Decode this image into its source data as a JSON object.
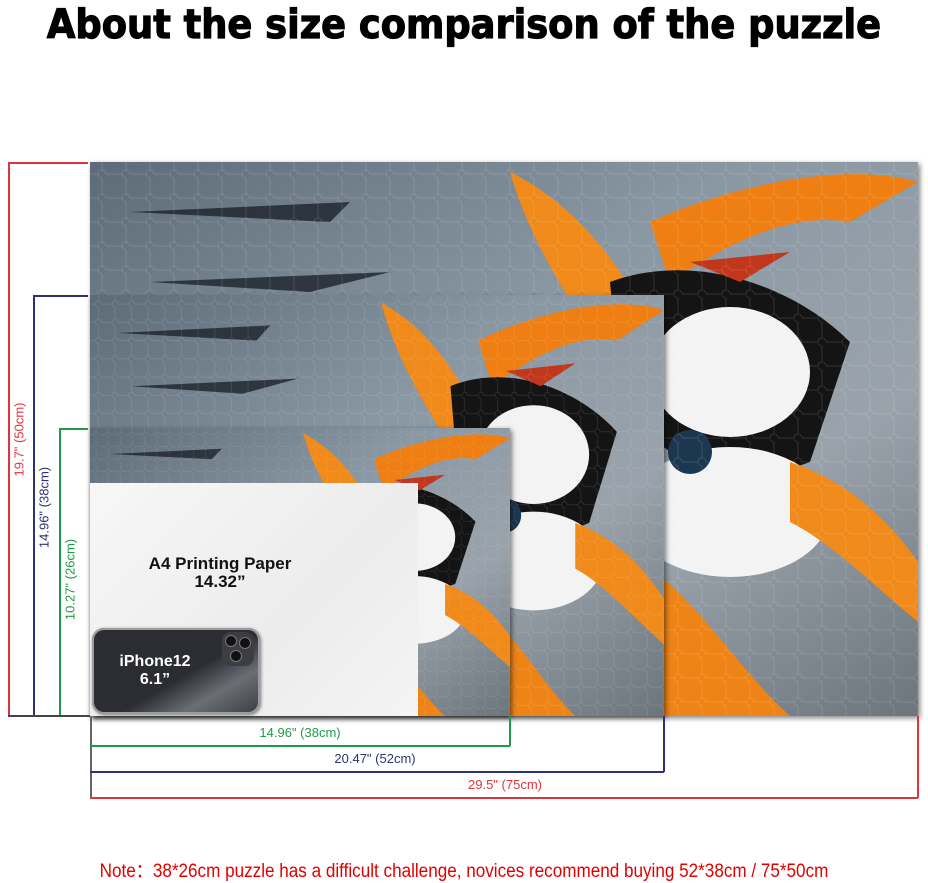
{
  "title": "About the size comparison of the puzzle",
  "colors": {
    "large": "#e0343c",
    "medium": "#2e3272",
    "small": "#1f9a4a",
    "note": "#e10000"
  },
  "puzzles": [
    {
      "size": "large",
      "height_label": "19.7\" (50cm)",
      "width_label": "29.5\" (75cm)"
    },
    {
      "size": "medium",
      "height_label": "14.96\" (38cm)",
      "width_label": "20.47\" (52cm)"
    },
    {
      "size": "small",
      "height_label": "10.27\" (26cm)",
      "width_label": "14.96\" (38cm)"
    }
  ],
  "paper": {
    "line1": "A4 Printing Paper",
    "line2": "14.32”"
  },
  "phone": {
    "line1": "iPhone12",
    "line2": "6.1”"
  },
  "note": "Note：38*26cm puzzle has a difficult challenge, novices recommend buying 52*38cm / 75*50cm"
}
